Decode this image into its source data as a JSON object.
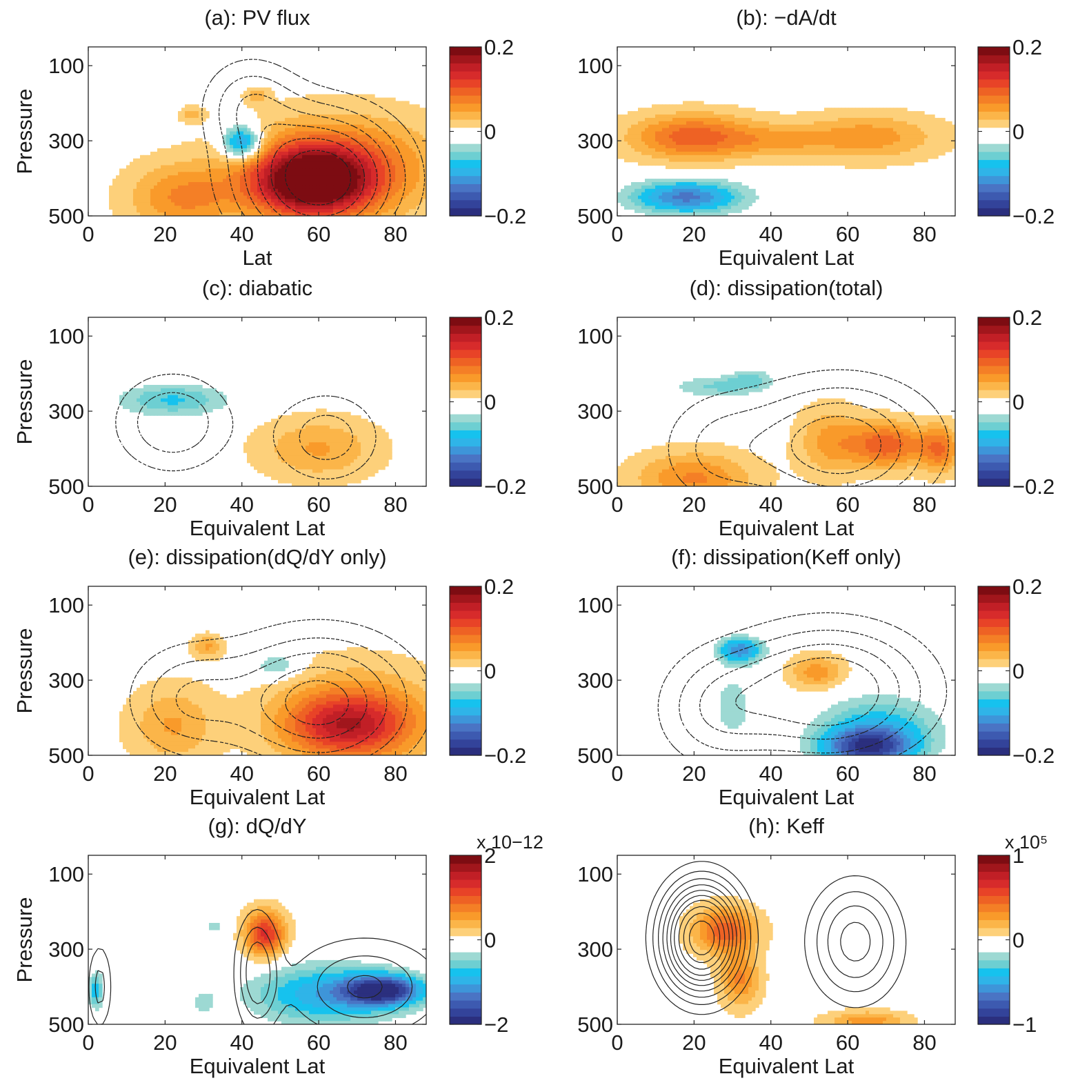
{
  "figure": {
    "colormap": [
      "#2b2f7e",
      "#33439a",
      "#3d5ab0",
      "#4a74c4",
      "#3e95d9",
      "#2fb4e8",
      "#16c2ee",
      "#6dcfd2",
      "#9dd9d3",
      "#ffffff",
      "#ffffff",
      "#fdd07a",
      "#fbb549",
      "#f99a2a",
      "#f47f26",
      "#ee6224",
      "#e84327",
      "#d72b2b",
      "#c11f26",
      "#a1161c",
      "#7d0c12"
    ],
    "contour_color": "#222222"
  },
  "chart_data": [
    {
      "id": "a",
      "type": "heatmap",
      "title": "(a): PV flux",
      "xlabel": "Lat",
      "ylabel": "Pressure",
      "xlim": [
        0,
        88
      ],
      "ylim": [
        500,
        50
      ],
      "y_reversed": true,
      "xticks": [
        "0",
        "20",
        "40",
        "60",
        "80"
      ],
      "yticks": [
        "100",
        "300",
        "500"
      ],
      "colorbar": {
        "ticks": [
          "0.2",
          "0",
          "−0.2"
        ],
        "range": [
          -0.2,
          0.2
        ],
        "exponent": ""
      },
      "contour_style": "dashed",
      "fill_features": [
        {
          "lat": 58,
          "p": 410,
          "value": 0.2,
          "w_lat": 15,
          "w_p": 90
        },
        {
          "lat": 66,
          "p": 370,
          "value": 0.09,
          "w_lat": 24,
          "w_p": 130
        },
        {
          "lat": 25,
          "p": 450,
          "value": 0.07,
          "w_lat": 14,
          "w_p": 90
        },
        {
          "lat": 40,
          "p": 305,
          "value": -0.13,
          "w_lat": 5,
          "w_p": 45
        },
        {
          "lat": 44,
          "p": 180,
          "value": 0.04,
          "w_lat": 3,
          "w_p": 20
        },
        {
          "lat": 27,
          "p": 230,
          "value": 0.04,
          "w_lat": 3,
          "w_p": 20
        }
      ],
      "contour_features": [
        {
          "lat": 60,
          "p": 400,
          "amp": 1,
          "w_lat": 20,
          "w_p": 170
        },
        {
          "lat": 42,
          "p": 200,
          "amp": 0.35,
          "w_lat": 12,
          "w_p": 120
        }
      ],
      "contour_levels": [
        0.15,
        0.28,
        0.42,
        0.56,
        0.7,
        0.84
      ]
    },
    {
      "id": "b",
      "type": "heatmap",
      "title": "(b): −dA/dt",
      "xlabel": "Equivalent Lat",
      "ylabel": "",
      "xlim": [
        0,
        88
      ],
      "ylim": [
        500,
        50
      ],
      "y_reversed": true,
      "xticks": [
        "0",
        "20",
        "40",
        "60",
        "80"
      ],
      "yticks": [
        "100",
        "300",
        "500"
      ],
      "colorbar": {
        "ticks": [
          "0.2",
          "0",
          "−0.2"
        ],
        "range": [
          -0.2,
          0.2
        ],
        "exponent": ""
      },
      "contour_style": "none",
      "fill_features": [
        {
          "lat": 20,
          "p": 290,
          "value": 0.1,
          "w_lat": 16,
          "w_p": 60
        },
        {
          "lat": 65,
          "p": 290,
          "value": 0.06,
          "w_lat": 18,
          "w_p": 60
        },
        {
          "lat": 42,
          "p": 300,
          "value": 0.035,
          "w_lat": 12,
          "w_p": 40
        },
        {
          "lat": 18,
          "p": 450,
          "value": -0.13,
          "w_lat": 15,
          "w_p": 45
        }
      ],
      "contour_features": [],
      "contour_levels": []
    },
    {
      "id": "c",
      "type": "heatmap",
      "title": "(c): diabatic",
      "xlabel": "Equivalent Lat",
      "ylabel": "Pressure",
      "xlim": [
        0,
        88
      ],
      "ylim": [
        500,
        50
      ],
      "y_reversed": true,
      "xticks": [
        "0",
        "20",
        "40",
        "60",
        "80"
      ],
      "yticks": [
        "100",
        "300",
        "500"
      ],
      "colorbar": {
        "ticks": [
          "0.2",
          "0",
          "−0.2"
        ],
        "range": [
          -0.2,
          0.2
        ],
        "exponent": ""
      },
      "contour_style": "dashed",
      "fill_features": [
        {
          "lat": 22,
          "p": 270,
          "value": -0.07,
          "w_lat": 15,
          "w_p": 45
        },
        {
          "lat": 60,
          "p": 400,
          "value": 0.05,
          "w_lat": 15,
          "w_p": 80
        }
      ],
      "contour_features": [
        {
          "lat": 22,
          "p": 330,
          "amp": 0.8,
          "w_lat": 15,
          "w_p": 130
        },
        {
          "lat": 62,
          "p": 370,
          "amp": 0.7,
          "w_lat": 14,
          "w_p": 120
        }
      ],
      "contour_levels": [
        0.3,
        0.55
      ]
    },
    {
      "id": "d",
      "type": "heatmap",
      "title": "(d): dissipation(total)",
      "xlabel": "Equivalent Lat",
      "ylabel": "",
      "xlim": [
        0,
        88
      ],
      "ylim": [
        500,
        50
      ],
      "y_reversed": true,
      "xticks": [
        "0",
        "20",
        "40",
        "60",
        "80"
      ],
      "yticks": [
        "100",
        "300",
        "500"
      ],
      "colorbar": {
        "ticks": [
          "0.2",
          "0",
          "−0.2"
        ],
        "range": [
          -0.2,
          0.2
        ],
        "exponent": ""
      },
      "contour_style": "dashed",
      "fill_features": [
        {
          "lat": 70,
          "p": 390,
          "value": 0.1,
          "w_lat": 10,
          "w_p": 60
        },
        {
          "lat": 84,
          "p": 400,
          "value": 0.08,
          "w_lat": 5,
          "w_p": 60
        },
        {
          "lat": 55,
          "p": 380,
          "value": 0.05,
          "w_lat": 8,
          "w_p": 90
        },
        {
          "lat": 20,
          "p": 480,
          "value": 0.07,
          "w_lat": 15,
          "w_p": 70
        },
        {
          "lat": 25,
          "p": 235,
          "value": -0.05,
          "w_lat": 12,
          "w_p": 30
        },
        {
          "lat": 35,
          "p": 215,
          "value": -0.045,
          "w_lat": 6,
          "w_p": 30
        }
      ],
      "contour_features": [
        {
          "lat": 58,
          "p": 390,
          "amp": 1,
          "w_lat": 24,
          "w_p": 170
        },
        {
          "lat": 25,
          "p": 400,
          "amp": 0.4,
          "w_lat": 15,
          "w_p": 150
        }
      ],
      "contour_levels": [
        0.25,
        0.45,
        0.65,
        0.82
      ]
    },
    {
      "id": "e",
      "type": "heatmap",
      "title": "(e): dissipation(dQ/dY only)",
      "xlabel": "Equivalent Lat",
      "ylabel": "Pressure",
      "xlim": [
        0,
        88
      ],
      "ylim": [
        500,
        50
      ],
      "y_reversed": true,
      "xticks": [
        "0",
        "20",
        "40",
        "60",
        "80"
      ],
      "yticks": [
        "100",
        "300",
        "500"
      ],
      "colorbar": {
        "ticks": [
          "0.2",
          "0",
          "−0.2"
        ],
        "range": [
          -0.2,
          0.2
        ],
        "exponent": ""
      },
      "contour_style": "dashed",
      "fill_features": [
        {
          "lat": 67,
          "p": 420,
          "value": 0.1,
          "w_lat": 16,
          "w_p": 80
        },
        {
          "lat": 70,
          "p": 400,
          "value": 0.07,
          "w_lat": 20,
          "w_p": 130
        },
        {
          "lat": 22,
          "p": 420,
          "value": 0.05,
          "w_lat": 11,
          "w_p": 100
        },
        {
          "lat": 31,
          "p": 210,
          "value": 0.05,
          "w_lat": 4,
          "w_p": 30
        },
        {
          "lat": 49,
          "p": 260,
          "value": -0.05,
          "w_lat": 6,
          "w_p": 35
        }
      ],
      "contour_features": [
        {
          "lat": 60,
          "p": 360,
          "amp": 1,
          "w_lat": 24,
          "w_p": 180
        },
        {
          "lat": 25,
          "p": 350,
          "amp": 0.5,
          "w_lat": 15,
          "w_p": 140
        }
      ],
      "contour_levels": [
        0.22,
        0.4,
        0.58,
        0.76,
        0.9
      ]
    },
    {
      "id": "f",
      "type": "heatmap",
      "title": "(f): dissipation(Keff only)",
      "xlabel": "Equivalent Lat",
      "ylabel": "",
      "xlim": [
        0,
        88
      ],
      "ylim": [
        500,
        50
      ],
      "y_reversed": true,
      "xticks": [
        "0",
        "20",
        "40",
        "60",
        "80"
      ],
      "yticks": [
        "100",
        "300",
        "500"
      ],
      "colorbar": {
        "ticks": [
          "0.2",
          "0",
          "−0.2"
        ],
        "range": [
          -0.2,
          0.2
        ],
        "exponent": ""
      },
      "contour_style": "dashed",
      "fill_features": [
        {
          "lat": 65,
          "p": 480,
          "value": -0.14,
          "w_lat": 12,
          "w_p": 50
        },
        {
          "lat": 68,
          "p": 430,
          "value": -0.08,
          "w_lat": 16,
          "w_p": 90
        },
        {
          "lat": 32,
          "p": 220,
          "value": -0.12,
          "w_lat": 6,
          "w_p": 35
        },
        {
          "lat": 30,
          "p": 370,
          "value": -0.045,
          "w_lat": 5,
          "w_p": 90
        },
        {
          "lat": 52,
          "p": 280,
          "value": 0.06,
          "w_lat": 7,
          "w_p": 45
        }
      ],
      "contour_features": [
        {
          "lat": 55,
          "p": 330,
          "amp": 1,
          "w_lat": 25,
          "w_p": 170
        },
        {
          "lat": 25,
          "p": 380,
          "amp": 0.45,
          "w_lat": 15,
          "w_p": 150
        }
      ],
      "contour_levels": [
        0.22,
        0.4,
        0.58,
        0.76
      ]
    },
    {
      "id": "g",
      "type": "heatmap",
      "title": "(g): dQ/dY",
      "xlabel": "Equivalent Lat",
      "ylabel": "Pressure",
      "xlim": [
        0,
        88
      ],
      "ylim": [
        500,
        50
      ],
      "y_reversed": true,
      "xticks": [
        "0",
        "20",
        "40",
        "60",
        "80"
      ],
      "yticks": [
        "100",
        "300",
        "500"
      ],
      "colorbar": {
        "ticks": [
          "2",
          "0",
          "−2"
        ],
        "range": [
          -2,
          2
        ],
        "exponent": "x 10−12"
      },
      "contour_style": "solid",
      "fill_features": [
        {
          "lat": 46,
          "p": 260,
          "value": 1.3,
          "w_lat": 5,
          "w_p": 60
        },
        {
          "lat": 77,
          "p": 410,
          "value": -1.7,
          "w_lat": 10,
          "w_p": 40
        },
        {
          "lat": 62,
          "p": 420,
          "value": -1.0,
          "w_lat": 20,
          "w_p": 80
        },
        {
          "lat": 2,
          "p": 410,
          "value": -0.8,
          "w_lat": 2,
          "w_p": 50
        },
        {
          "lat": 30,
          "p": 440,
          "value": -0.4,
          "w_lat": 3,
          "w_p": 30
        },
        {
          "lat": 33,
          "p": 240,
          "value": -0.35,
          "w_lat": 3,
          "w_p": 25
        }
      ],
      "contour_features": [
        {
          "lat": 44,
          "p": 360,
          "amp": 1,
          "w_lat": 5,
          "w_p": 140
        },
        {
          "lat": 72,
          "p": 400,
          "amp": 0.8,
          "w_lat": 18,
          "w_p": 120
        },
        {
          "lat": 3,
          "p": 400,
          "amp": 0.6,
          "w_lat": 3,
          "w_p": 110
        }
      ],
      "contour_levels": [
        0.25,
        0.5,
        0.75
      ]
    },
    {
      "id": "h",
      "type": "heatmap",
      "title": "(h): Keff",
      "xlabel": "Equivalent Lat",
      "ylabel": "",
      "xlim": [
        0,
        88
      ],
      "ylim": [
        500,
        50
      ],
      "y_reversed": true,
      "xticks": [
        "0",
        "20",
        "40",
        "60",
        "80"
      ],
      "yticks": [
        "100",
        "300",
        "500"
      ],
      "colorbar": {
        "ticks": [
          "1",
          "0",
          "−1"
        ],
        "range": [
          -1,
          1
        ],
        "exponent": "x 10⁵"
      },
      "contour_style": "solid",
      "fill_features": [
        {
          "lat": 28,
          "p": 250,
          "value": 0.5,
          "w_lat": 8,
          "w_p": 60
        },
        {
          "lat": 32,
          "p": 380,
          "value": 0.35,
          "w_lat": 5,
          "w_p": 70
        },
        {
          "lat": 65,
          "p": 490,
          "value": 0.3,
          "w_lat": 10,
          "w_p": 25
        }
      ],
      "contour_features": [
        {
          "lat": 22,
          "p": 270,
          "amp": 1,
          "w_lat": 10,
          "w_p": 140
        },
        {
          "lat": 62,
          "p": 280,
          "amp": 0.4,
          "w_lat": 12,
          "w_p": 160
        }
      ],
      "contour_levels": [
        0.12,
        0.2,
        0.28,
        0.36,
        0.44,
        0.52,
        0.6,
        0.7,
        0.8,
        0.9
      ]
    }
  ]
}
